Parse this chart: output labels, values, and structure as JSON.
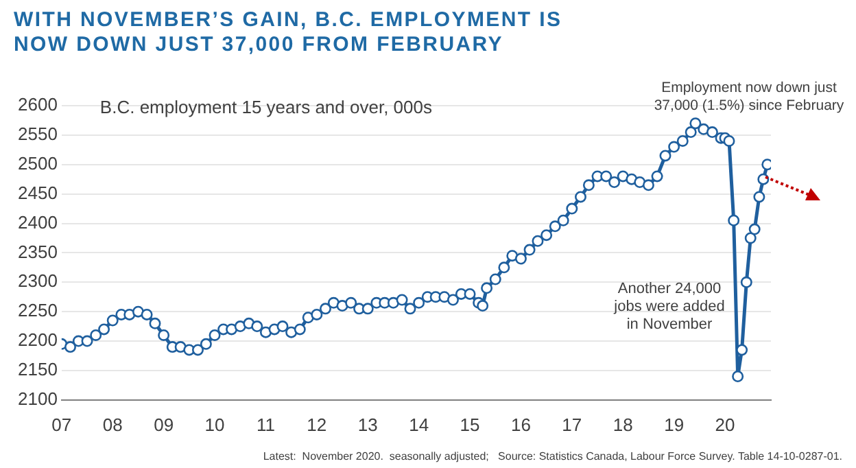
{
  "chart_data": {
    "type": "line",
    "title": "WITH NOVEMBER’S GAIN, B.C. EMPLOYMENT IS NOW DOWN JUST 37,000 FROM FEBRUARY",
    "subtitle": "B.C. employment 15 years and over, 000s",
    "x": [
      2007,
      2007.17,
      2007.33,
      2007.5,
      2007.67,
      2007.83,
      2008,
      2008.17,
      2008.33,
      2008.5,
      2008.67,
      2008.83,
      2009,
      2009.17,
      2009.33,
      2009.5,
      2009.67,
      2009.83,
      2010,
      2010.17,
      2010.33,
      2010.5,
      2010.67,
      2010.83,
      2011,
      2011.17,
      2011.33,
      2011.5,
      2011.67,
      2011.83,
      2012,
      2012.17,
      2012.33,
      2012.5,
      2012.67,
      2012.83,
      2013,
      2013.17,
      2013.33,
      2013.5,
      2013.67,
      2013.83,
      2014,
      2014.17,
      2014.33,
      2014.5,
      2014.67,
      2014.83,
      2015,
      2015.17,
      2015.25,
      2015.33,
      2015.5,
      2015.67,
      2015.83,
      2016,
      2016.17,
      2016.33,
      2016.5,
      2016.67,
      2016.83,
      2017,
      2017.17,
      2017.33,
      2017.5,
      2017.67,
      2017.83,
      2018,
      2018.17,
      2018.33,
      2018.5,
      2018.67,
      2018.83,
      2019,
      2019.17,
      2019.33,
      2019.42,
      2019.58,
      2019.75,
      2019.92,
      2020,
      2020.08,
      2020.17,
      2020.25,
      2020.33,
      2020.42,
      2020.5,
      2020.58,
      2020.67,
      2020.75,
      2020.83
    ],
    "series": [
      {
        "color": "#1f5f9e",
        "values": [
          2195,
          2190,
          2200,
          2200,
          2210,
          2220,
          2235,
          2245,
          2245,
          2250,
          2245,
          2230,
          2210,
          2190,
          2190,
          2185,
          2185,
          2195,
          2210,
          2220,
          2220,
          2225,
          2230,
          2225,
          2215,
          2220,
          2225,
          2215,
          2220,
          2240,
          2245,
          2255,
          2265,
          2260,
          2265,
          2255,
          2255,
          2265,
          2265,
          2265,
          2270,
          2255,
          2265,
          2275,
          2275,
          2275,
          2270,
          2280,
          2280,
          2265,
          2260,
          2290,
          2305,
          2325,
          2345,
          2340,
          2355,
          2370,
          2380,
          2395,
          2405,
          2425,
          2445,
          2465,
          2480,
          2480,
          2470,
          2480,
          2475,
          2470,
          2465,
          2480,
          2515,
          2530,
          2540,
          2555,
          2570,
          2560,
          2555,
          2545,
          2545,
          2540,
          2405,
          2140,
          2185,
          2300,
          2375,
          2390,
          2445,
          2475,
          2500
        ]
      }
    ],
    "xlim": [
      2007,
      2020.9
    ],
    "xticks": [
      {
        "value": 2007,
        "label": "07"
      },
      {
        "value": 2008,
        "label": "08"
      },
      {
        "value": 2009,
        "label": "09"
      },
      {
        "value": 2010,
        "label": "10"
      },
      {
        "value": 2011,
        "label": "11"
      },
      {
        "value": 2012,
        "label": "12"
      },
      {
        "value": 2013,
        "label": "13"
      },
      {
        "value": 2014,
        "label": "14"
      },
      {
        "value": 2015,
        "label": "15"
      },
      {
        "value": 2016,
        "label": "16"
      },
      {
        "value": 2017,
        "label": "17"
      },
      {
        "value": 2018,
        "label": "18"
      },
      {
        "value": 2019,
        "label": "19"
      },
      {
        "value": 2020,
        "label": "20"
      }
    ],
    "ylim": [
      2100,
      2600
    ],
    "yticks": [
      2100,
      2150,
      2200,
      2250,
      2300,
      2350,
      2400,
      2450,
      2500,
      2550,
      2600
    ],
    "grid": "y",
    "legend": false,
    "marker": "circle",
    "line_style": "solid",
    "annotations": [
      "Employment now down just 37,000 (1.5%) since February",
      "Another 24,000 jobs were added in November",
      "Latest:  November 2020.  seasonally adjusted;   Source: Statistics Canada, Labour Force Survey. Table 14-10-0287-01."
    ]
  }
}
